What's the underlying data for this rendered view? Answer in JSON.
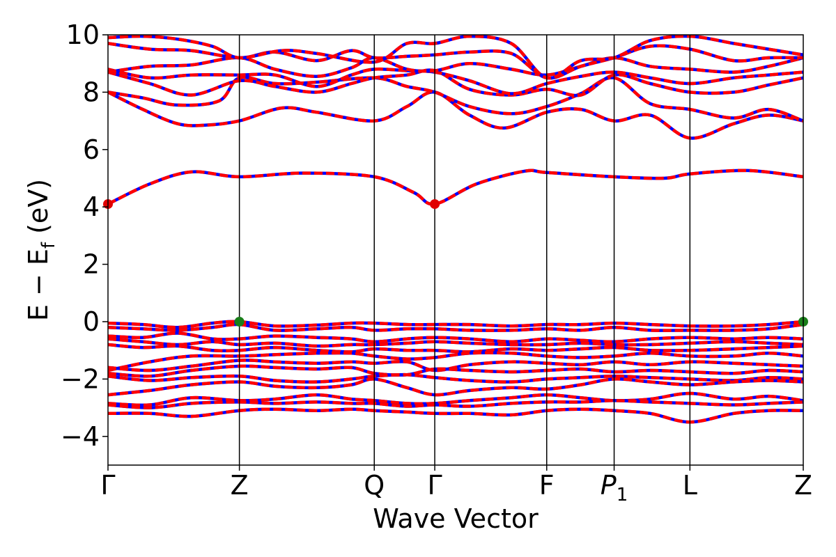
{
  "chart_data": {
    "type": "line",
    "xlabel": "Wave Vector",
    "ylabel": "E − E",
    "ylabel_sub": "f",
    "ylabel_unit": " (eV)",
    "ylim": [
      -5,
      10
    ],
    "yticks": [
      -4,
      -2,
      0,
      2,
      4,
      6,
      8,
      10
    ],
    "ytick_labels": [
      "−4",
      "−2",
      "0",
      "2",
      "4",
      "6",
      "8",
      "10"
    ],
    "xlim": [
      0,
      1
    ],
    "kpoints": [
      {
        "label": "Γ",
        "sub": "",
        "x": 0.0
      },
      {
        "label": "Z",
        "sub": "",
        "x": 0.189
      },
      {
        "label": "Q",
        "sub": "",
        "x": 0.383
      },
      {
        "label": "Γ",
        "sub": "",
        "x": 0.47
      },
      {
        "label": "F",
        "sub": "",
        "x": 0.631
      },
      {
        "label": "P",
        "sub": "1",
        "x": 0.728
      },
      {
        "label": "L",
        "sub": "",
        "x": 0.837
      },
      {
        "label": "Z",
        "sub": "",
        "x": 1.0
      }
    ],
    "colors": {
      "band_red": "#ff0000",
      "band_blue": "#0000ff",
      "vbm_marker": "#1a7f1a",
      "cbm_marker": "#e00000"
    },
    "markers": [
      {
        "type": "cbm",
        "x": 0.0,
        "y": 4.1
      },
      {
        "type": "cbm",
        "x": 0.47,
        "y": 4.1
      },
      {
        "type": "vbm",
        "x": 0.189,
        "y": 0.0
      },
      {
        "type": "vbm",
        "x": 1.0,
        "y": 0.0
      }
    ],
    "bands": [
      {
        "name": "cb2",
        "x": [
          0,
          0.06,
          0.12,
          0.189,
          0.28,
          0.383,
          0.44,
          0.47,
          0.53,
          0.6,
          0.631,
          0.728,
          0.8,
          0.837,
          0.92,
          1.0
        ],
        "y": [
          4.1,
          4.8,
          5.22,
          5.05,
          5.18,
          5.05,
          4.5,
          4.1,
          4.8,
          5.25,
          5.2,
          5.05,
          5.0,
          5.15,
          5.27,
          5.05
        ]
      },
      {
        "name": "cb3",
        "x": [
          0,
          0.05,
          0.1,
          0.14,
          0.189,
          0.25,
          0.3,
          0.383,
          0.43,
          0.47,
          0.52,
          0.57,
          0.631,
          0.68,
          0.728,
          0.78,
          0.837,
          0.9,
          0.95,
          1.0
        ],
        "y": [
          8.0,
          7.4,
          6.9,
          6.85,
          7.0,
          7.45,
          7.3,
          7.0,
          7.5,
          8.0,
          7.2,
          6.75,
          7.3,
          7.4,
          7.0,
          7.2,
          6.4,
          6.9,
          7.2,
          7.0
        ]
      },
      {
        "name": "cb4",
        "x": [
          0,
          0.05,
          0.1,
          0.16,
          0.189,
          0.24,
          0.3,
          0.383,
          0.43,
          0.47,
          0.52,
          0.58,
          0.631,
          0.68,
          0.728,
          0.78,
          0.837,
          0.9,
          0.95,
          1.0
        ],
        "y": [
          8.0,
          7.8,
          7.55,
          7.7,
          8.5,
          8.3,
          8.35,
          8.5,
          8.2,
          8.0,
          7.5,
          7.25,
          7.5,
          7.95,
          8.5,
          7.6,
          7.4,
          7.1,
          7.4,
          7.0
        ]
      },
      {
        "name": "cb5",
        "x": [
          0,
          0.06,
          0.12,
          0.189,
          0.24,
          0.3,
          0.35,
          0.383,
          0.43,
          0.47,
          0.52,
          0.58,
          0.631,
          0.68,
          0.728,
          0.78,
          0.837,
          0.9,
          0.95,
          1.0
        ],
        "y": [
          8.7,
          8.3,
          7.9,
          8.4,
          8.2,
          8.0,
          8.3,
          8.5,
          8.6,
          8.75,
          8.1,
          7.9,
          8.1,
          7.9,
          8.6,
          8.3,
          8.0,
          8.0,
          8.25,
          8.5
        ]
      },
      {
        "name": "cb6",
        "x": [
          0,
          0.06,
          0.12,
          0.189,
          0.24,
          0.3,
          0.35,
          0.383,
          0.43,
          0.47,
          0.52,
          0.58,
          0.631,
          0.68,
          0.728,
          0.78,
          0.837,
          0.9,
          0.95,
          1.0
        ],
        "y": [
          8.8,
          8.5,
          8.6,
          8.6,
          8.6,
          8.2,
          8.6,
          8.8,
          8.75,
          8.7,
          8.4,
          7.95,
          8.3,
          8.55,
          8.7,
          8.5,
          8.3,
          8.5,
          8.6,
          8.7
        ]
      },
      {
        "name": "cb7",
        "x": [
          0,
          0.06,
          0.12,
          0.189,
          0.24,
          0.3,
          0.35,
          0.383,
          0.43,
          0.47,
          0.52,
          0.58,
          0.631,
          0.68,
          0.728,
          0.78,
          0.837,
          0.9,
          0.95,
          1.0
        ],
        "y": [
          8.7,
          8.9,
          8.95,
          9.2,
          8.8,
          8.55,
          8.85,
          9.2,
          8.8,
          8.75,
          9.0,
          8.8,
          8.6,
          8.9,
          9.2,
          8.9,
          8.8,
          8.7,
          8.9,
          9.2
        ]
      },
      {
        "name": "cb8",
        "x": [
          0,
          0.06,
          0.12,
          0.189,
          0.24,
          0.3,
          0.35,
          0.383,
          0.43,
          0.47,
          0.52,
          0.58,
          0.631,
          0.68,
          0.728,
          0.78,
          0.837,
          0.9,
          0.95,
          1.0
        ],
        "y": [
          9.7,
          9.5,
          9.45,
          9.2,
          9.4,
          9.1,
          9.45,
          9.2,
          9.25,
          9.3,
          9.4,
          9.35,
          8.5,
          8.9,
          9.2,
          9.6,
          9.5,
          9.1,
          9.2,
          9.2
        ]
      },
      {
        "name": "cb9",
        "x": [
          0,
          0.05,
          0.1,
          0.15,
          0.189,
          0.25,
          0.3,
          0.383,
          0.43,
          0.47,
          0.52,
          0.58,
          0.631,
          0.68,
          0.728,
          0.78,
          0.837,
          0.9,
          0.95,
          1.0
        ],
        "y": [
          9.9,
          9.95,
          9.85,
          9.6,
          9.2,
          9.45,
          9.35,
          9.05,
          9.7,
          9.7,
          9.95,
          9.7,
          8.5,
          9.1,
          9.2,
          9.8,
          9.95,
          9.7,
          9.5,
          9.3
        ]
      },
      {
        "name": "vb1",
        "x": [
          0,
          0.05,
          0.1,
          0.15,
          0.189,
          0.24,
          0.3,
          0.35,
          0.383,
          0.43,
          0.47,
          0.52,
          0.58,
          0.631,
          0.68,
          0.728,
          0.78,
          0.837,
          0.9,
          0.95,
          1.0
        ],
        "y": [
          -0.05,
          -0.1,
          -0.2,
          -0.05,
          0.0,
          -0.15,
          -0.12,
          -0.05,
          -0.05,
          -0.1,
          -0.1,
          -0.1,
          -0.15,
          -0.1,
          -0.1,
          -0.05,
          -0.1,
          -0.15,
          -0.15,
          -0.1,
          0.0
        ]
      },
      {
        "name": "vb2",
        "x": [
          0,
          0.05,
          0.1,
          0.15,
          0.189,
          0.24,
          0.3,
          0.35,
          0.383,
          0.43,
          0.47,
          0.52,
          0.58,
          0.631,
          0.68,
          0.728,
          0.78,
          0.837,
          0.9,
          0.95,
          1.0
        ],
        "y": [
          -0.2,
          -0.25,
          -0.3,
          -0.2,
          -0.1,
          -0.3,
          -0.25,
          -0.2,
          -0.3,
          -0.25,
          -0.25,
          -0.3,
          -0.3,
          -0.25,
          -0.3,
          -0.2,
          -0.3,
          -0.3,
          -0.3,
          -0.25,
          -0.1
        ]
      },
      {
        "name": "vb3",
        "x": [
          0,
          0.05,
          0.1,
          0.15,
          0.189,
          0.24,
          0.3,
          0.35,
          0.383,
          0.43,
          0.47,
          0.52,
          0.58,
          0.631,
          0.68,
          0.728,
          0.78,
          0.837,
          0.9,
          0.95,
          1.0
        ],
        "y": [
          -0.5,
          -0.55,
          -0.4,
          -0.6,
          -0.6,
          -0.5,
          -0.55,
          -0.6,
          -0.7,
          -0.6,
          -0.55,
          -0.6,
          -0.7,
          -0.6,
          -0.65,
          -0.7,
          -0.6,
          -0.55,
          -0.6,
          -0.55,
          -0.6
        ]
      },
      {
        "name": "vb4",
        "x": [
          0,
          0.05,
          0.1,
          0.15,
          0.189,
          0.24,
          0.3,
          0.35,
          0.383,
          0.43,
          0.47,
          0.52,
          0.58,
          0.631,
          0.68,
          0.728,
          0.78,
          0.837,
          0.9,
          0.95,
          1.0
        ],
        "y": [
          -0.6,
          -0.7,
          -0.8,
          -0.7,
          -0.8,
          -0.75,
          -0.85,
          -0.8,
          -0.8,
          -0.75,
          -0.7,
          -0.75,
          -0.8,
          -0.8,
          -0.75,
          -0.8,
          -0.8,
          -0.75,
          -0.7,
          -0.75,
          -0.8
        ]
      },
      {
        "name": "vb5",
        "x": [
          0,
          0.05,
          0.1,
          0.15,
          0.189,
          0.24,
          0.3,
          0.35,
          0.383,
          0.43,
          0.47,
          0.52,
          0.58,
          0.631,
          0.68,
          0.728,
          0.78,
          0.837,
          0.9,
          0.95,
          1.0
        ],
        "y": [
          -0.8,
          -0.9,
          -0.85,
          -1.0,
          -1.0,
          -0.9,
          -1.0,
          -1.05,
          -0.95,
          -1.0,
          -1.0,
          -1.05,
          -0.95,
          -1.0,
          -0.95,
          -0.9,
          -1.0,
          -1.0,
          -0.95,
          -0.9,
          -0.85
        ]
      },
      {
        "name": "vb6",
        "x": [
          0,
          0.06,
          0.12,
          0.189,
          0.24,
          0.3,
          0.35,
          0.383,
          0.43,
          0.47,
          0.52,
          0.58,
          0.631,
          0.68,
          0.728,
          0.78,
          0.837,
          0.9,
          0.95,
          1.0
        ],
        "y": [
          -1.7,
          -1.4,
          -1.2,
          -1.2,
          -1.15,
          -1.1,
          -1.1,
          -1.2,
          -1.3,
          -1.25,
          -1.1,
          -1.1,
          -1.2,
          -1.25,
          -1.2,
          -1.1,
          -1.2,
          -1.2,
          -1.1,
          -1.2
        ]
      },
      {
        "name": "vb7",
        "x": [
          0,
          0.06,
          0.12,
          0.189,
          0.24,
          0.3,
          0.35,
          0.383,
          0.43,
          0.47,
          0.52,
          0.58,
          0.631,
          0.68,
          0.728,
          0.78,
          0.837,
          0.9,
          0.95,
          1.0
        ],
        "y": [
          -1.6,
          -1.7,
          -1.55,
          -1.35,
          -1.4,
          -1.45,
          -1.4,
          -1.45,
          -1.4,
          -1.7,
          -1.5,
          -1.4,
          -1.45,
          -1.5,
          -1.4,
          -1.5,
          -1.4,
          -1.45,
          -1.5,
          -1.55
        ]
      },
      {
        "name": "vb8",
        "x": [
          0,
          0.06,
          0.12,
          0.189,
          0.24,
          0.3,
          0.35,
          0.383,
          0.43,
          0.47,
          0.52,
          0.58,
          0.631,
          0.68,
          0.728,
          0.78,
          0.837,
          0.9,
          0.95,
          1.0
        ],
        "y": [
          -1.8,
          -1.9,
          -1.7,
          -1.55,
          -1.6,
          -1.65,
          -1.6,
          -1.8,
          -1.85,
          -1.65,
          -1.7,
          -1.75,
          -1.7,
          -1.65,
          -1.75,
          -1.7,
          -1.75,
          -1.8,
          -1.7,
          -1.75
        ]
      },
      {
        "name": "vb9",
        "x": [
          0,
          0.06,
          0.12,
          0.189,
          0.24,
          0.3,
          0.35,
          0.383,
          0.43,
          0.47,
          0.52,
          0.58,
          0.631,
          0.68,
          0.728,
          0.78,
          0.837,
          0.9,
          0.95,
          1.0
        ],
        "y": [
          -1.9,
          -2.05,
          -1.95,
          -1.9,
          -2.05,
          -2.1,
          -2.0,
          -1.9,
          -1.85,
          -1.95,
          -2.05,
          -2.1,
          -2.0,
          -1.95,
          -1.9,
          -1.95,
          -2.0,
          -2.05,
          -1.95,
          -2.0
        ]
      },
      {
        "name": "vb10",
        "x": [
          0,
          0.06,
          0.12,
          0.189,
          0.24,
          0.3,
          0.35,
          0.383,
          0.43,
          0.47,
          0.52,
          0.58,
          0.631,
          0.68,
          0.728,
          0.78,
          0.837,
          0.9,
          0.95,
          1.0
        ],
        "y": [
          -2.55,
          -2.4,
          -2.2,
          -2.1,
          -2.25,
          -2.3,
          -2.2,
          -2.0,
          -2.3,
          -2.55,
          -2.4,
          -2.3,
          -2.35,
          -2.2,
          -2.0,
          -2.1,
          -2.2,
          -2.1,
          -2.05,
          -2.1
        ]
      },
      {
        "name": "vb11",
        "x": [
          0,
          0.06,
          0.12,
          0.189,
          0.24,
          0.3,
          0.35,
          0.383,
          0.43,
          0.47,
          0.52,
          0.58,
          0.631,
          0.68,
          0.728,
          0.78,
          0.837,
          0.9,
          0.95,
          1.0
        ],
        "y": [
          -2.85,
          -2.9,
          -2.65,
          -2.75,
          -2.7,
          -2.55,
          -2.7,
          -2.75,
          -2.85,
          -2.85,
          -2.75,
          -2.65,
          -2.55,
          -2.65,
          -2.75,
          -2.7,
          -2.5,
          -2.7,
          -2.6,
          -2.75
        ]
      },
      {
        "name": "vb12",
        "x": [
          0,
          0.06,
          0.12,
          0.189,
          0.24,
          0.3,
          0.35,
          0.383,
          0.43,
          0.47,
          0.52,
          0.58,
          0.631,
          0.68,
          0.728,
          0.78,
          0.837,
          0.9,
          0.95,
          1.0
        ],
        "y": [
          -2.9,
          -3.0,
          -2.85,
          -2.8,
          -2.85,
          -2.8,
          -2.85,
          -2.85,
          -2.95,
          -2.9,
          -2.95,
          -2.85,
          -2.8,
          -2.8,
          -2.75,
          -2.8,
          -2.85,
          -2.9,
          -2.85,
          -2.8
        ]
      },
      {
        "name": "vb13",
        "x": [
          0,
          0.06,
          0.12,
          0.189,
          0.24,
          0.3,
          0.35,
          0.383,
          0.43,
          0.47,
          0.52,
          0.58,
          0.631,
          0.68,
          0.728,
          0.78,
          0.837,
          0.9,
          0.95,
          1.0
        ],
        "y": [
          -3.2,
          -3.2,
          -3.3,
          -3.1,
          -3.05,
          -3.1,
          -3.05,
          -3.1,
          -3.15,
          -3.2,
          -3.2,
          -3.25,
          -3.1,
          -3.05,
          -3.1,
          -3.2,
          -3.5,
          -3.2,
          -3.1,
          -3.1
        ]
      }
    ]
  }
}
